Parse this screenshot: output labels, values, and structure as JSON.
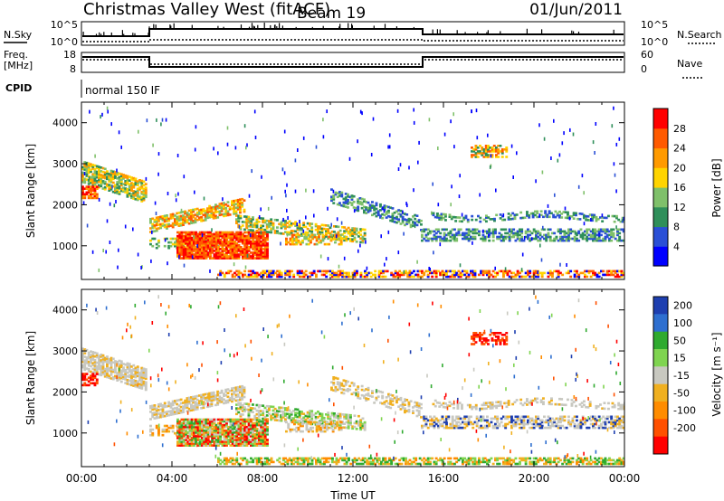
{
  "header": {
    "station": "Christmas Valley West (fitACF)",
    "beam": "Beam 19",
    "date": "01/Jun/2011"
  },
  "info_panels": {
    "nsky_label": "N.Sky",
    "nsky_ticks": [
      "10^5",
      "10^0"
    ],
    "nsearch_label": "N.Search",
    "nsearch_ticks": [
      "10^5",
      "10^0"
    ],
    "freq_label_1": "Freq.",
    "freq_label_2": "[MHz]",
    "freq_ticks": [
      "18",
      "8"
    ],
    "nave_label": "Nave",
    "nave_ticks": [
      "60",
      "0"
    ],
    "cpid_label": "CPID",
    "cpid_value": "normal 150 IF"
  },
  "colors": {
    "power_scale": [
      "#0000ff",
      "#2a4fd6",
      "#2f8f5a",
      "#7fc06a",
      "#ffd400",
      "#ff9a00",
      "#ff5a00",
      "#ff0000"
    ],
    "velocity_scale": [
      "#1e3fb0",
      "#2e6fd0",
      "#2faa2f",
      "#7fd450",
      "#c8c8c0",
      "#f0b020",
      "#ff8c00",
      "#ff5000",
      "#ff0000"
    ]
  },
  "chart_data": [
    {
      "type": "heatmap",
      "ylabel": "Slant Range [km]",
      "xlabel": "",
      "x_ticks": [
        "00:00",
        "04:00",
        "08:00",
        "12:00",
        "16:00",
        "20:00",
        "00:00"
      ],
      "y_ticks": [
        "1000",
        "2000",
        "3000",
        "4000"
      ],
      "xlim": [
        0,
        24
      ],
      "ylim": [
        180,
        4500
      ],
      "colorbar_label": "Power [dB]",
      "colorbar_ticks": [
        "4",
        "8",
        "12",
        "16",
        "20",
        "24",
        "28"
      ],
      "colorbar_range": [
        0,
        32
      ]
    },
    {
      "type": "heatmap",
      "ylabel": "Slant Range [km]",
      "xlabel": "Time UT",
      "x_ticks": [
        "00:00",
        "04:00",
        "08:00",
        "12:00",
        "16:00",
        "20:00",
        "00:00"
      ],
      "y_ticks": [
        "1000",
        "2000",
        "3000",
        "4000"
      ],
      "xlim": [
        0,
        24
      ],
      "ylim": [
        180,
        4500
      ],
      "colorbar_label": "Velocity [m s⁻¹]",
      "colorbar_ticks": [
        "200",
        "100",
        "50",
        "15",
        "-15",
        "-50",
        "-100",
        "-200"
      ]
    }
  ]
}
